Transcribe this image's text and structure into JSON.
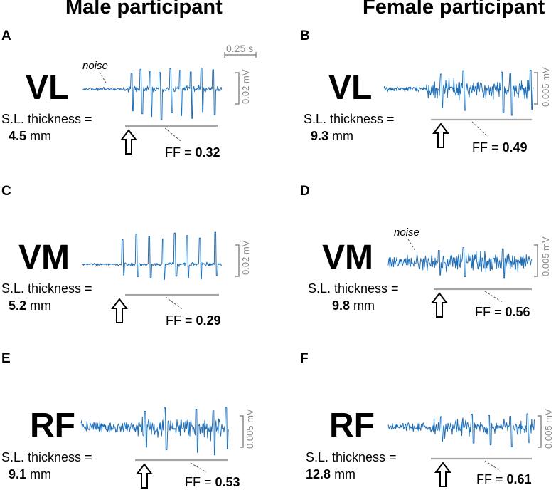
{
  "columns": {
    "left_title": "Male participant",
    "right_title": "Female participant"
  },
  "time_scale": "0.25 s",
  "colors": {
    "signal": "#1f6fb8",
    "scale": "#8a8a8a",
    "baseline": "#a6a6a6"
  },
  "icons": {
    "arrow": "up-arrow-icon",
    "dash": "dashed-pointer"
  },
  "sl_label": "S.L. thickness =",
  "ff_prefix": "FF = ",
  "noise_label": "noise",
  "units": {
    "mm": "mm"
  },
  "panels": [
    {
      "letter": "A",
      "muscle": "VL",
      "sl_value": "4.5",
      "ff_value": "0.32",
      "amp": "0.02 mV"
    },
    {
      "letter": "B",
      "muscle": "VL",
      "sl_value": "9.3",
      "ff_value": "0.49",
      "amp": "0.005 mV"
    },
    {
      "letter": "C",
      "muscle": "VM",
      "sl_value": "5.2",
      "ff_value": "0.29",
      "amp": "0.02 mV"
    },
    {
      "letter": "D",
      "muscle": "VM",
      "sl_value": "9.8",
      "ff_value": "0.56",
      "amp": "0.005 mV"
    },
    {
      "letter": "E",
      "muscle": "RF",
      "sl_value": "9.1",
      "ff_value": "0.53",
      "amp": "0.005 mV"
    },
    {
      "letter": "F",
      "muscle": "RF",
      "sl_value": "12.8",
      "ff_value": "0.61",
      "amp": "0.005 mV"
    }
  ]
}
